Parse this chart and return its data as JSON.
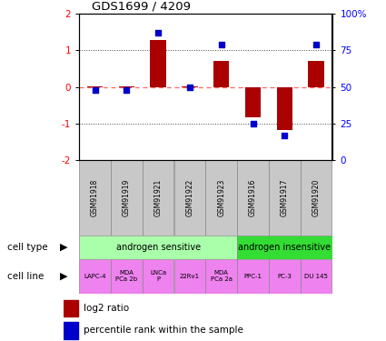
{
  "title": "GDS1699 / 4209",
  "samples": [
    "GSM91918",
    "GSM91919",
    "GSM91921",
    "GSM91922",
    "GSM91923",
    "GSM91916",
    "GSM91917",
    "GSM91920"
  ],
  "log2_ratio": [
    0.02,
    0.02,
    1.28,
    0.02,
    0.72,
    -0.82,
    -1.18,
    0.72
  ],
  "percentile_rank": [
    48,
    48,
    87,
    50,
    79,
    25,
    17,
    79
  ],
  "cell_type_groups": [
    {
      "label": "androgen sensitive",
      "start": 0,
      "end": 5,
      "color": "#AAFFAA"
    },
    {
      "label": "androgen insensitive",
      "start": 5,
      "end": 8,
      "color": "#33DD33"
    }
  ],
  "cell_lines": [
    "LAPC-4",
    "MDA\nPCa 2b",
    "LNCa\nP",
    "22Rv1",
    "MDA\nPCa 2a",
    "PPC-1",
    "PC-3",
    "DU 145"
  ],
  "cell_line_color": "#EE82EE",
  "sample_header_color": "#C8C8C8",
  "bar_color": "#AA0000",
  "dot_color": "#0000CC",
  "ylim": [
    -2,
    2
  ],
  "yticks_left": [
    -2,
    -1,
    0,
    1,
    2
  ],
  "yticks_right": [
    0,
    25,
    50,
    75,
    100
  ],
  "zero_line_color": "#FF6666",
  "dotted_line_color": "#444444",
  "left_label_color": "#000000"
}
